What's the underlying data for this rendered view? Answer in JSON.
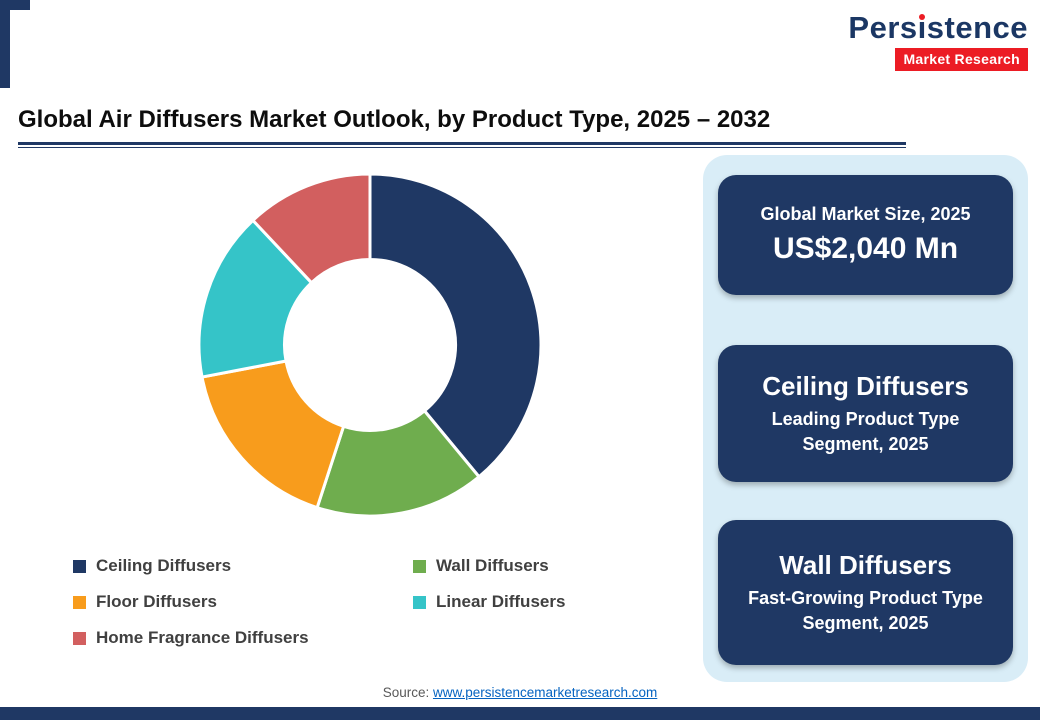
{
  "logo": {
    "name_parts": [
      "Pers",
      "ı",
      "stence"
    ],
    "full_name": "Persistence",
    "tagline": "Market Research",
    "navy": "#1b3764",
    "red": "#ec1c24"
  },
  "title": "Global Air Diffusers Market Outlook, by Product Type, 2025 – 2032",
  "chart_data": {
    "type": "pie",
    "subtype": "donut",
    "title": "Global Air Diffusers Market Outlook, by Product Type, 2025 – 2032",
    "unit": "% share (estimated from segment arc sizes; no numeric labels shown)",
    "series": [
      {
        "name": "Ceiling Diffusers",
        "value": 39,
        "color": "#1f3864"
      },
      {
        "name": "Wall Diffusers",
        "value": 16,
        "color": "#6fad4e"
      },
      {
        "name": "Floor Diffusers",
        "value": 17,
        "color": "#f89c1c"
      },
      {
        "name": "Linear Diffusers",
        "value": 16,
        "color": "#35c4c8"
      },
      {
        "name": "Home Fragrance Diffusers",
        "value": 12,
        "color": "#d25f5f"
      }
    ],
    "start_angle_deg": -90,
    "direction": "clockwise",
    "inner_radius_ratio": 0.5,
    "legend_position": "bottom",
    "segment_gap_color": "#ffffff"
  },
  "panel": {
    "bg": "#d9edf7",
    "cards": [
      {
        "line1": "Global Market Size, 2025",
        "line2": "US$2,040 Mn"
      },
      {
        "line1": "Ceiling Diffusers",
        "line2": "Leading Product Type Segment, 2025"
      },
      {
        "line1": "Wall Diffusers",
        "line2": "Fast-Growing Product Type Segment, 2025"
      }
    ]
  },
  "source": {
    "label": "Source: ",
    "link_text": "www.persistencemarketresearch.com"
  }
}
